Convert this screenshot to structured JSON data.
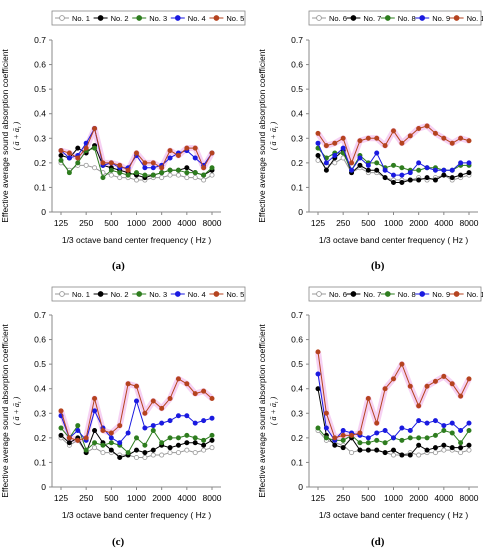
{
  "y_axis_label": "Effective average sound absorption coefficient",
  "y_axis_sublabel": "( ā + ā",
  "y_axis_sub_t": "t",
  "y_axis_sub_close": " )",
  "x_axis_label": "1/3 octave band center frequency ( Hz )",
  "colors": {
    "series_1": "#999999",
    "series_2": "#000000",
    "series_3": "#2e7d1f",
    "series_4": "#1a1ae0",
    "series_5": "#b5431f",
    "halo": "#f4c6f0"
  },
  "chart_data": [
    {
      "type": "line",
      "panel_label": "(a)",
      "categories": [
        "125",
        "160",
        "200",
        "250",
        "315",
        "400",
        "500",
        "630",
        "800",
        "1000",
        "1250",
        "1600",
        "2000",
        "2500",
        "3150",
        "4000",
        "5000",
        "6300",
        "8000"
      ],
      "tick_labels": [
        "125",
        "250",
        "500",
        "1000",
        "2000",
        "4000",
        "8000"
      ],
      "ylim": [
        0,
        0.7
      ],
      "yticks": [
        "0",
        "0.1",
        "0.2",
        "0.3",
        "0.4",
        "0.5",
        "0.6",
        "0.7"
      ],
      "series": [
        {
          "name": "No. 1",
          "values": [
            0.2,
            0.17,
            0.19,
            0.19,
            0.18,
            0.16,
            0.15,
            0.14,
            0.14,
            0.13,
            0.13,
            0.14,
            0.14,
            0.15,
            0.15,
            0.14,
            0.14,
            0.13,
            0.15
          ]
        },
        {
          "name": "No. 2",
          "values": [
            0.23,
            0.22,
            0.26,
            0.24,
            0.27,
            0.19,
            0.18,
            0.17,
            0.16,
            0.15,
            0.14,
            0.15,
            0.16,
            0.17,
            0.17,
            0.18,
            0.16,
            0.15,
            0.17
          ]
        },
        {
          "name": "No. 3",
          "values": [
            0.21,
            0.16,
            0.2,
            0.25,
            0.26,
            0.14,
            0.17,
            0.16,
            0.15,
            0.16,
            0.15,
            0.15,
            0.16,
            0.17,
            0.17,
            0.16,
            0.16,
            0.15,
            0.18
          ]
        },
        {
          "name": "No. 4",
          "values": [
            0.25,
            0.22,
            0.23,
            0.28,
            0.34,
            0.19,
            0.2,
            0.18,
            0.18,
            0.23,
            0.18,
            0.18,
            0.19,
            0.22,
            0.24,
            0.25,
            0.22,
            0.19,
            0.24
          ]
        },
        {
          "name": "No. 5",
          "values": [
            0.25,
            0.24,
            0.22,
            0.26,
            0.34,
            0.2,
            0.2,
            0.19,
            0.17,
            0.24,
            0.2,
            0.2,
            0.18,
            0.25,
            0.23,
            0.26,
            0.26,
            0.18,
            0.24
          ]
        }
      ]
    },
    {
      "type": "line",
      "panel_label": "(b)",
      "categories": [
        "125",
        "160",
        "200",
        "250",
        "315",
        "400",
        "500",
        "630",
        "800",
        "1000",
        "1250",
        "1600",
        "2000",
        "2500",
        "3150",
        "4000",
        "5000",
        "6300",
        "8000"
      ],
      "tick_labels": [
        "125",
        "250",
        "500",
        "1000",
        "2000",
        "4000",
        "8000"
      ],
      "ylim": [
        0,
        0.7
      ],
      "yticks": [
        "0",
        "0.1",
        "0.2",
        "0.3",
        "0.4",
        "0.5",
        "0.6",
        "0.7"
      ],
      "series": [
        {
          "name": "No. 6",
          "values": [
            0.21,
            0.19,
            0.2,
            0.22,
            0.16,
            0.18,
            0.16,
            0.16,
            0.14,
            0.13,
            0.13,
            0.13,
            0.14,
            0.13,
            0.14,
            0.15,
            0.13,
            0.14,
            0.15
          ]
        },
        {
          "name": "No. 7",
          "values": [
            0.23,
            0.17,
            0.22,
            0.25,
            0.16,
            0.19,
            0.17,
            0.17,
            0.14,
            0.12,
            0.12,
            0.13,
            0.13,
            0.14,
            0.13,
            0.15,
            0.14,
            0.15,
            0.16
          ]
        },
        {
          "name": "No. 8",
          "values": [
            0.26,
            0.22,
            0.24,
            0.24,
            0.17,
            0.23,
            0.2,
            0.2,
            0.18,
            0.19,
            0.18,
            0.17,
            0.17,
            0.18,
            0.18,
            0.17,
            0.17,
            0.19,
            0.19
          ]
        },
        {
          "name": "No. 9",
          "values": [
            0.28,
            0.2,
            0.23,
            0.26,
            0.17,
            0.22,
            0.19,
            0.24,
            0.17,
            0.15,
            0.15,
            0.16,
            0.2,
            0.18,
            0.17,
            0.17,
            0.17,
            0.2,
            0.2
          ]
        },
        {
          "name": "No. 10",
          "values": [
            0.32,
            0.27,
            0.28,
            0.3,
            0.2,
            0.29,
            0.3,
            0.3,
            0.27,
            0.33,
            0.28,
            0.31,
            0.34,
            0.35,
            0.32,
            0.3,
            0.28,
            0.3,
            0.29
          ]
        }
      ]
    },
    {
      "type": "line",
      "panel_label": "(c)",
      "categories": [
        "125",
        "160",
        "200",
        "250",
        "315",
        "400",
        "500",
        "630",
        "800",
        "1000",
        "1250",
        "1600",
        "2000",
        "2500",
        "3150",
        "4000",
        "5000",
        "6300",
        "8000"
      ],
      "tick_labels": [
        "125",
        "250",
        "500",
        "1000",
        "2000",
        "4000",
        "8000"
      ],
      "ylim": [
        0,
        0.7
      ],
      "yticks": [
        "0",
        "0.1",
        "0.2",
        "0.3",
        "0.4",
        "0.5",
        "0.6",
        "0.7"
      ],
      "series": [
        {
          "name": "No. 1",
          "values": [
            0.2,
            0.17,
            0.19,
            0.14,
            0.16,
            0.14,
            0.14,
            0.13,
            0.13,
            0.12,
            0.12,
            0.13,
            0.13,
            0.14,
            0.14,
            0.15,
            0.14,
            0.15,
            0.16
          ]
        },
        {
          "name": "No. 2",
          "values": [
            0.21,
            0.18,
            0.2,
            0.14,
            0.23,
            0.18,
            0.15,
            0.12,
            0.13,
            0.15,
            0.14,
            0.15,
            0.17,
            0.16,
            0.17,
            0.18,
            0.18,
            0.17,
            0.19
          ]
        },
        {
          "name": "No. 3",
          "values": [
            0.24,
            0.2,
            0.25,
            0.15,
            0.18,
            0.17,
            0.18,
            0.17,
            0.14,
            0.2,
            0.17,
            0.23,
            0.18,
            0.2,
            0.2,
            0.21,
            0.2,
            0.19,
            0.21
          ]
        },
        {
          "name": "No. 4",
          "values": [
            0.29,
            0.2,
            0.23,
            0.19,
            0.31,
            0.24,
            0.2,
            0.18,
            0.22,
            0.35,
            0.24,
            0.25,
            0.26,
            0.27,
            0.29,
            0.29,
            0.26,
            0.27,
            0.28
          ]
        },
        {
          "name": "No. 5",
          "values": [
            0.31,
            0.2,
            0.19,
            0.2,
            0.36,
            0.23,
            0.22,
            0.25,
            0.42,
            0.41,
            0.3,
            0.35,
            0.32,
            0.36,
            0.44,
            0.42,
            0.38,
            0.39,
            0.36
          ]
        }
      ]
    },
    {
      "type": "line",
      "panel_label": "(d)",
      "categories": [
        "125",
        "160",
        "200",
        "250",
        "315",
        "400",
        "500",
        "630",
        "800",
        "1000",
        "1250",
        "1600",
        "2000",
        "2500",
        "3150",
        "4000",
        "5000",
        "6300",
        "8000"
      ],
      "tick_labels": [
        "125",
        "250",
        "500",
        "1000",
        "2000",
        "4000",
        "8000"
      ],
      "ylim": [
        0,
        0.7
      ],
      "yticks": [
        "0",
        "0.1",
        "0.2",
        "0.3",
        "0.4",
        "0.5",
        "0.6",
        "0.7"
      ],
      "series": [
        {
          "name": "No. 6",
          "values": [
            0.23,
            0.19,
            0.18,
            0.17,
            0.14,
            0.15,
            0.15,
            0.15,
            0.14,
            0.13,
            0.13,
            0.14,
            0.13,
            0.14,
            0.14,
            0.15,
            0.15,
            0.14,
            0.15
          ]
        },
        {
          "name": "No. 7",
          "values": [
            0.4,
            0.21,
            0.17,
            0.16,
            0.2,
            0.15,
            0.15,
            0.15,
            0.14,
            0.15,
            0.13,
            0.13,
            0.17,
            0.15,
            0.16,
            0.17,
            0.16,
            0.16,
            0.17
          ]
        },
        {
          "name": "No. 8",
          "values": [
            0.24,
            0.2,
            0.19,
            0.19,
            0.21,
            0.18,
            0.18,
            0.19,
            0.18,
            0.2,
            0.19,
            0.2,
            0.2,
            0.2,
            0.21,
            0.23,
            0.22,
            0.18,
            0.23
          ]
        },
        {
          "name": "No. 9",
          "values": [
            0.46,
            0.24,
            0.19,
            0.23,
            0.22,
            0.21,
            0.2,
            0.22,
            0.23,
            0.2,
            0.24,
            0.23,
            0.27,
            0.26,
            0.27,
            0.25,
            0.26,
            0.23,
            0.26
          ]
        },
        {
          "name": "No. 10",
          "values": [
            0.55,
            0.3,
            0.2,
            0.21,
            0.21,
            0.22,
            0.36,
            0.26,
            0.4,
            0.44,
            0.5,
            0.41,
            0.33,
            0.41,
            0.43,
            0.45,
            0.42,
            0.37,
            0.44
          ]
        }
      ]
    }
  ]
}
